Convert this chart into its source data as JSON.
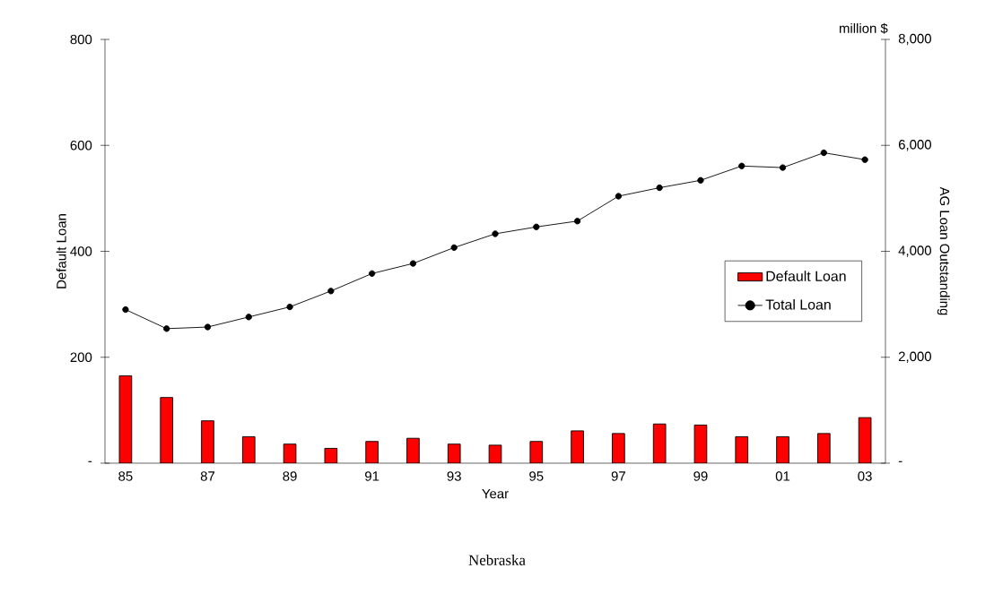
{
  "chart_data": {
    "type": "bar",
    "title": "Nebraska",
    "xlabel": "Year",
    "ylabel": "Default Loan",
    "y2label": "AG Loan Outstanding",
    "annotations": [
      "million $"
    ],
    "categories": [
      "85",
      null,
      "87",
      null,
      "89",
      null,
      "91",
      null,
      "93",
      null,
      "95",
      null,
      "97",
      null,
      "99",
      null,
      "01",
      null,
      "03"
    ],
    "series": [
      {
        "name": "Default Loan",
        "color": "#ff0000",
        "values": [
          165,
          124,
          80,
          50,
          36,
          28,
          41,
          47,
          36,
          34,
          41,
          61,
          56,
          74,
          72,
          50,
          50,
          56,
          86
        ]
      },
      {
        "name": "Total Loan",
        "type": "line",
        "axis": "y2",
        "color": "#000000",
        "marker": "circle",
        "values": [
          2900,
          2540,
          2570,
          2760,
          2950,
          3250,
          3580,
          3770,
          4070,
          4330,
          4460,
          4570,
          5040,
          5200,
          5340,
          5610,
          5580,
          5860,
          5730
        ]
      }
    ],
    "ylim": [
      0,
      800
    ],
    "yticks": [
      {
        "value": 0,
        "label": "-"
      },
      200,
      400,
      600,
      800
    ],
    "y2lim": [
      0,
      8000
    ],
    "y2ticks": [
      {
        "value": 0,
        "label": "-"
      },
      {
        "value": 2000,
        "label": "2,000"
      },
      {
        "value": 4000,
        "label": "4,000"
      },
      {
        "value": 6000,
        "label": "6,000"
      },
      {
        "value": 8000,
        "label": "8,000"
      }
    ],
    "legend": "right"
  }
}
